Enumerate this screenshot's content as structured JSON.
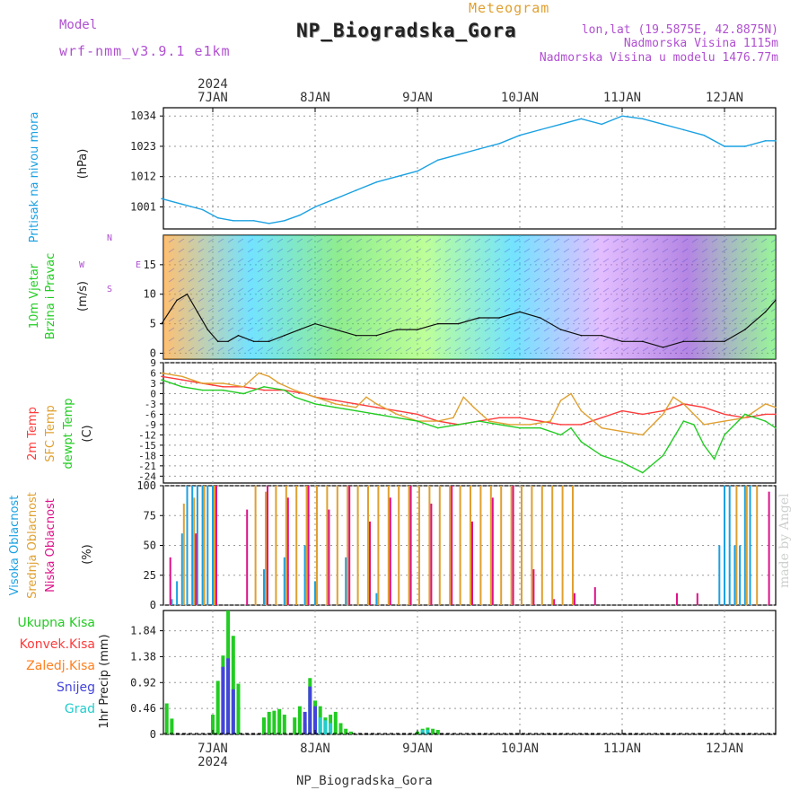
{
  "header": {
    "model_label": "Model",
    "model_name": "wrf-nmm_v3.9.1 e1km",
    "subtitle": "Meteogram",
    "title": "NP_Biogradska_Gora",
    "lonlat": "lon,lat (19.5875E, 42.8875N)",
    "elev_station": "Nadmorska Visina 1115m",
    "elev_model": "Nadmorska Visina u modelu 1476.77m",
    "footer": "NP_Biogradska_Gora",
    "credit": "made by Angel"
  },
  "colors": {
    "pressure": "#1ba1e2",
    "t2m": "#ff3b3b",
    "sfc": "#e0a030",
    "dewpt": "#22cc22",
    "high_cloud": "#1ba1e2",
    "mid_cloud": "#e0a030",
    "low_cloud": "#dd1188",
    "total_precip": "#22cc22",
    "conv_precip": "#ff3b3b",
    "frz_precip": "#ff8020",
    "snow": "#4444dd",
    "graupel": "#22cccc",
    "label_purple": "#b050d0"
  },
  "time_axis": {
    "year": "2024",
    "ticks": [
      "7JAN",
      "8JAN",
      "9JAN",
      "10JAN",
      "11JAN",
      "12JAN"
    ]
  },
  "panels": [
    {
      "id": "pressure",
      "labels": [
        "Pritisak na nivou mora"
      ],
      "unit": "(hPa)"
    },
    {
      "id": "wind",
      "labels": [
        "10m Vjetar",
        "Brzina i Pravac"
      ],
      "unit": "(m/s)",
      "compass": [
        "N",
        "W",
        "E",
        "S"
      ]
    },
    {
      "id": "temp",
      "labels": [
        "2m Temp",
        "SFC Temp",
        "dewpt Temp"
      ],
      "unit": "(C)"
    },
    {
      "id": "cloud",
      "labels": [
        "Visoka Oblacnost",
        "Srednja Oblacnost",
        "Niska Oblacnost"
      ],
      "unit": "(%)"
    },
    {
      "id": "precip",
      "labels": [
        "Ukupna Kisa",
        "Konvek.Kisa",
        "Zaledj.Kisa",
        "Snijeg",
        "Grad"
      ],
      "unit": "1hr Precip (mm)"
    }
  ],
  "chart_data": [
    {
      "type": "line",
      "panel": "pressure",
      "ylabel": "(hPa)",
      "y_ticks": [
        1001,
        1012,
        1023,
        1034
      ],
      "ylim": [
        993,
        1037
      ],
      "x_unit": "days from 7JAN 00UTC",
      "series": [
        {
          "name": "Pritisak na nivou mora",
          "x": [
            -0.5,
            -0.3,
            -0.1,
            0.05,
            0.2,
            0.4,
            0.55,
            0.7,
            0.85,
            1.0,
            1.2,
            1.4,
            1.6,
            1.8,
            2.0,
            2.2,
            2.4,
            2.6,
            2.8,
            3.0,
            3.2,
            3.4,
            3.6,
            3.8,
            4.0,
            4.2,
            4.4,
            4.6,
            4.8,
            5.0,
            5.2,
            5.4,
            5.5
          ],
          "y": [
            1004,
            1002,
            1000,
            997,
            996,
            996,
            995,
            996,
            998,
            1001,
            1004,
            1007,
            1010,
            1012,
            1014,
            1018,
            1020,
            1022,
            1024,
            1027,
            1029,
            1031,
            1033,
            1031,
            1034,
            1033,
            1031,
            1029,
            1027,
            1023,
            1023,
            1025,
            1025
          ]
        }
      ]
    },
    {
      "type": "line",
      "panel": "wind",
      "ylabel": "(m/s)",
      "y_ticks": [
        0,
        5,
        10,
        15
      ],
      "ylim": [
        -1,
        20
      ],
      "x_unit": "days from 7JAN 00UTC",
      "series": [
        {
          "name": "10m Vjetar",
          "x": [
            -0.5,
            -0.35,
            -0.25,
            -0.15,
            -0.05,
            0.05,
            0.15,
            0.25,
            0.4,
            0.55,
            0.7,
            0.85,
            1.0,
            1.2,
            1.4,
            1.6,
            1.8,
            2.0,
            2.2,
            2.4,
            2.6,
            2.8,
            3.0,
            3.2,
            3.4,
            3.6,
            3.8,
            4.0,
            4.2,
            4.4,
            4.6,
            4.8,
            5.0,
            5.2,
            5.4,
            5.5
          ],
          "y": [
            5,
            9,
            10,
            7,
            4,
            2,
            2,
            3,
            2,
            2,
            3,
            4,
            5,
            4,
            3,
            3,
            4,
            4,
            5,
            5,
            6,
            6,
            7,
            6,
            4,
            3,
            3,
            2,
            2,
            1,
            2,
            2,
            2,
            4,
            7,
            9
          ]
        }
      ]
    },
    {
      "type": "line",
      "panel": "temp",
      "ylabel": "(C)",
      "y_ticks": [
        9,
        6,
        3,
        0,
        -3,
        -6,
        -9,
        -12,
        -15,
        -18,
        -21,
        -24
      ],
      "ylim": [
        -26,
        9
      ],
      "x_unit": "days from 7JAN 00UTC",
      "series": [
        {
          "name": "2m Temp",
          "x": [
            -0.5,
            -0.3,
            -0.1,
            0.1,
            0.3,
            0.5,
            0.7,
            0.9,
            1.0,
            1.2,
            1.4,
            1.6,
            1.8,
            2.0,
            2.2,
            2.4,
            2.6,
            2.8,
            3.0,
            3.2,
            3.4,
            3.6,
            3.8,
            4.0,
            4.2,
            4.4,
            4.6,
            4.8,
            5.0,
            5.2,
            5.4,
            5.5
          ],
          "y": [
            5,
            4,
            3,
            2,
            2,
            1,
            1,
            0,
            -1,
            -2,
            -3,
            -4,
            -5,
            -6,
            -8,
            -9,
            -8,
            -7,
            -7,
            -8,
            -9,
            -9,
            -7,
            -5,
            -6,
            -5,
            -3,
            -4,
            -6,
            -7,
            -6,
            -6
          ]
        },
        {
          "name": "SFC Temp",
          "x": [
            -0.5,
            -0.3,
            -0.1,
            0.1,
            0.3,
            0.45,
            0.55,
            0.65,
            0.8,
            0.9,
            1.0,
            1.2,
            1.4,
            1.5,
            1.6,
            1.8,
            2.0,
            2.2,
            2.35,
            2.45,
            2.55,
            2.7,
            2.9,
            3.1,
            3.3,
            3.4,
            3.5,
            3.6,
            3.8,
            4.0,
            4.2,
            4.4,
            4.5,
            4.6,
            4.8,
            5.0,
            5.2,
            5.4,
            5.5
          ],
          "y": [
            6,
            5,
            3,
            3,
            2,
            6,
            5,
            3,
            1,
            0,
            -1,
            -3,
            -4,
            -1,
            -3,
            -6,
            -8,
            -8,
            -7,
            -1,
            -4,
            -8,
            -9,
            -9,
            -8,
            -2,
            0,
            -5,
            -10,
            -11,
            -12,
            -6,
            -1,
            -3,
            -9,
            -8,
            -7,
            -3,
            -4
          ]
        },
        {
          "name": "dewpt Temp",
          "x": [
            -0.5,
            -0.3,
            -0.1,
            0.1,
            0.3,
            0.5,
            0.7,
            0.8,
            0.9,
            1.0,
            1.2,
            1.4,
            1.6,
            1.8,
            2.0,
            2.2,
            2.4,
            2.6,
            2.8,
            3.0,
            3.2,
            3.4,
            3.5,
            3.6,
            3.8,
            4.0,
            4.2,
            4.4,
            4.6,
            4.7,
            4.8,
            4.9,
            5.0,
            5.2,
            5.4,
            5.5
          ],
          "y": [
            4,
            2,
            1,
            1,
            0,
            2,
            1,
            -1,
            -2,
            -3,
            -4,
            -5,
            -6,
            -7,
            -8,
            -10,
            -9,
            -8,
            -9,
            -10,
            -10,
            -12,
            -10,
            -14,
            -18,
            -20,
            -23,
            -18,
            -8,
            -9,
            -15,
            -19,
            -12,
            -6,
            -8,
            -10
          ]
        }
      ]
    },
    {
      "type": "bar",
      "panel": "cloud",
      "ylabel": "(%)",
      "y_ticks": [
        0,
        25,
        50,
        75,
        100
      ],
      "ylim": [
        0,
        100
      ],
      "x_unit": "days from 7JAN 00UTC",
      "series": [
        {
          "name": "Visoka Oblacnost",
          "x": [
            -0.4,
            -0.35,
            -0.3,
            -0.25,
            -0.2,
            -0.15,
            -0.1,
            -0.05,
            0.0,
            0.5,
            0.7,
            0.9,
            1.0,
            1.3,
            1.6,
            4.95,
            5.0,
            5.05,
            5.1,
            5.15,
            5.2,
            5.25
          ],
          "y": [
            5,
            20,
            60,
            100,
            100,
            100,
            100,
            100,
            100,
            30,
            40,
            50,
            20,
            40,
            10,
            50,
            100,
            100,
            50,
            50,
            100,
            100
          ]
        },
        {
          "name": "Srednja Oblacnost",
          "x": [
            -0.3,
            -0.2,
            -0.1,
            0.0,
            0.4,
            0.5,
            0.6,
            0.7,
            0.8,
            0.9,
            1.0,
            1.1,
            1.2,
            1.3,
            1.4,
            1.5,
            1.6,
            1.7,
            1.8,
            1.9,
            2.0,
            2.1,
            2.2,
            2.3,
            2.4,
            2.5,
            2.6,
            2.7,
            2.8,
            2.9,
            3.0,
            3.1,
            3.2,
            3.3,
            3.4,
            3.5,
            5.1,
            5.2,
            5.3
          ],
          "y": [
            85,
            90,
            100,
            100,
            100,
            95,
            100,
            100,
            100,
            100,
            100,
            100,
            100,
            100,
            100,
            100,
            100,
            100,
            100,
            100,
            100,
            100,
            100,
            100,
            100,
            100,
            100,
            100,
            100,
            100,
            100,
            100,
            100,
            100,
            100,
            100,
            100,
            100,
            100
          ]
        },
        {
          "name": "Niska Oblacnost",
          "x": [
            -0.45,
            -0.2,
            0.0,
            0.3,
            0.5,
            0.7,
            0.9,
            1.1,
            1.3,
            1.5,
            1.7,
            1.9,
            2.1,
            2.3,
            2.5,
            2.7,
            2.9,
            3.1,
            3.3,
            3.5,
            3.7,
            4.5,
            4.7,
            5.4
          ],
          "y": [
            40,
            60,
            100,
            80,
            100,
            90,
            100,
            80,
            100,
            70,
            90,
            100,
            85,
            100,
            70,
            90,
            100,
            30,
            5,
            10,
            15,
            10,
            10,
            95
          ]
        }
      ]
    },
    {
      "type": "bar",
      "panel": "precip",
      "ylabel": "1hr Precip (mm)",
      "y_ticks": [
        0,
        0.46,
        0.92,
        1.38,
        1.84
      ],
      "ylim": [
        0,
        2.2
      ],
      "x_unit": "days from 7JAN 00UTC",
      "series": [
        {
          "name": "Ukupna Kisa",
          "x": [
            -0.45,
            -0.4,
            -0.0,
            0.05,
            0.1,
            0.15,
            0.2,
            0.25,
            0.5,
            0.55,
            0.6,
            0.65,
            0.7,
            0.8,
            0.85,
            0.9,
            0.95,
            1.0,
            1.05,
            1.1,
            1.15,
            1.2,
            1.25,
            1.3,
            1.35,
            2.0,
            2.05,
            2.1,
            2.15,
            2.2
          ],
          "y": [
            0.55,
            0.28,
            0.35,
            0.95,
            1.4,
            2.2,
            1.75,
            0.9,
            0.3,
            0.4,
            0.42,
            0.45,
            0.35,
            0.3,
            0.5,
            0.2,
            1.0,
            0.6,
            0.5,
            0.3,
            0.35,
            0.4,
            0.2,
            0.1,
            0.05,
            0.05,
            0.1,
            0.12,
            0.1,
            0.08
          ]
        },
        {
          "name": "Snijeg",
          "x": [
            0.1,
            0.15,
            0.2,
            0.9,
            0.95,
            1.0
          ],
          "y": [
            1.2,
            1.35,
            0.8,
            0.4,
            0.85,
            0.5
          ]
        },
        {
          "name": "Grad",
          "x": [
            1.05,
            1.1,
            1.15,
            2.05,
            2.1
          ],
          "y": [
            0.3,
            0.25,
            0.2,
            0.08,
            0.08
          ]
        }
      ]
    }
  ]
}
